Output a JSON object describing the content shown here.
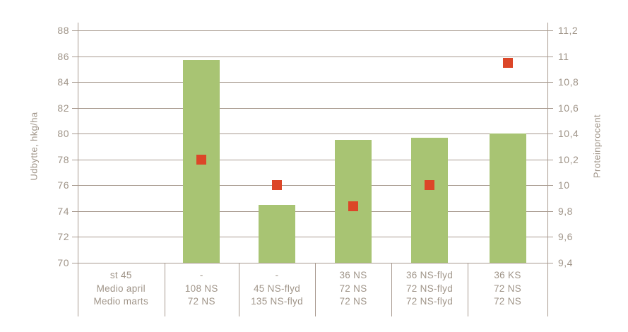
{
  "chart_data": {
    "type": "combo",
    "title": "",
    "grid": true,
    "legend": "none",
    "left_axis": {
      "label": "Udbytte, hkg/ha",
      "min": 70,
      "max": 88,
      "tick_step": 2,
      "ticks": [
        "88",
        "86",
        "84",
        "82",
        "80",
        "78",
        "76",
        "74",
        "72",
        "70"
      ]
    },
    "right_axis": {
      "label": "Proteinprocent",
      "min": 9.4,
      "max": 11.2,
      "tick_step": 0.2,
      "ticks": [
        "11,2",
        "11",
        "10,8",
        "10,6",
        "10,4",
        "10,2",
        "10",
        "9,8",
        "9,6",
        "9,4"
      ]
    },
    "category_table": {
      "row_header": [
        "st 45",
        "Medio april",
        "Medio marts"
      ],
      "groups": [
        [
          "-",
          "108 NS",
          "72 NS"
        ],
        [
          "-",
          "45 NS-flyd",
          "135 NS-flyd"
        ],
        [
          "36 NS",
          "72 NS",
          "72 NS"
        ],
        [
          "36 NS-flyd",
          "72 NS-flyd",
          "72 NS-flyd"
        ],
        [
          "36 KS",
          "72 NS",
          "72 NS"
        ]
      ]
    },
    "series": [
      {
        "name": "Udbytte, hkg/ha",
        "type": "bar",
        "axis": "left",
        "color": "#a8c473",
        "values": [
          85.7,
          74.5,
          79.5,
          79.7,
          80.0
        ]
      },
      {
        "name": "Proteinprocent",
        "type": "point",
        "axis": "right",
        "marker": "square",
        "color": "#dc4628",
        "values": [
          10.2,
          10.0,
          9.84,
          10.0,
          10.95
        ]
      }
    ],
    "colors": {
      "grid_line": "#a89a8f",
      "axis_line": "#a89a8f",
      "text": "#a09589"
    }
  }
}
